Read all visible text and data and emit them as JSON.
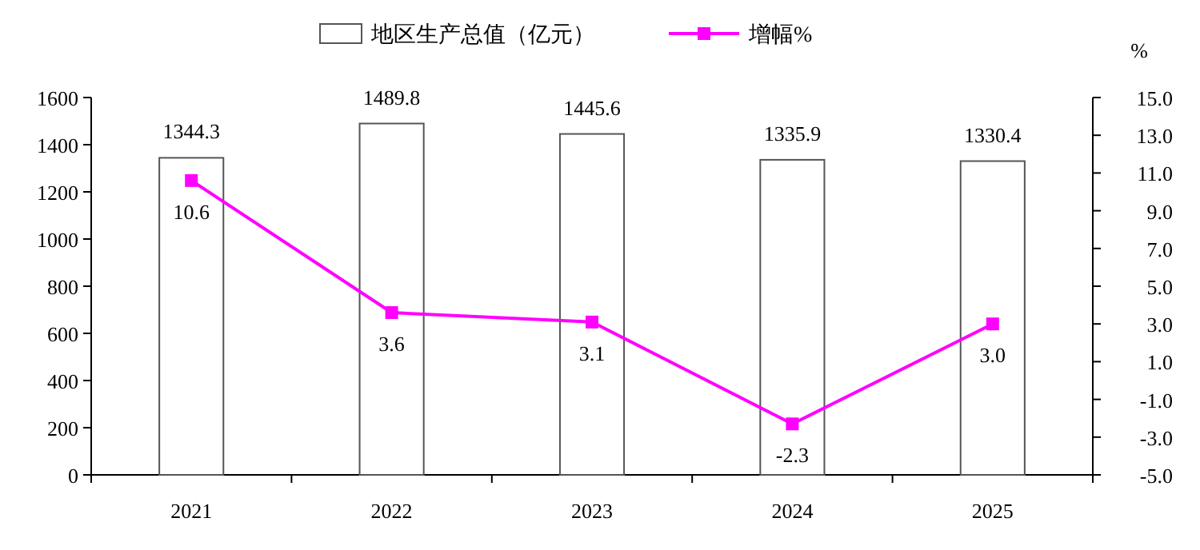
{
  "chart_data": {
    "type": "bar",
    "categories": [
      "2021",
      "2022",
      "2023",
      "2024",
      "2025"
    ],
    "series": [
      {
        "name": "地区生产总值（亿元）",
        "color": "#ffffff",
        "values": [
          1344.3,
          1489.8,
          1445.6,
          1335.9,
          1330.4
        ]
      },
      {
        "name": "增幅%",
        "type": "line",
        "axis": "y2",
        "marker": "square",
        "color": "#ff00ff",
        "values": [
          10.6,
          3.6,
          3.1,
          -2.3,
          3.0
        ],
        "value_labels": [
          "10.6",
          "3.6",
          "3.1",
          "-2.3",
          "3.0"
        ]
      }
    ],
    "ylim": [
      0,
      1600
    ],
    "yticks": [
      0,
      200,
      400,
      600,
      800,
      1000,
      1200,
      1400,
      1600
    ],
    "y2lim": [
      -5,
      15
    ],
    "y2ticks": [
      {
        "value": -5,
        "label": "-5.0"
      },
      {
        "value": -3,
        "label": "-3.0"
      },
      {
        "value": -1,
        "label": "-1.0"
      },
      {
        "value": 1,
        "label": "1.0"
      },
      {
        "value": 3,
        "label": "3.0"
      },
      {
        "value": 5,
        "label": "5.0"
      },
      {
        "value": 7,
        "label": "7.0"
      },
      {
        "value": 9,
        "label": "9.0"
      },
      {
        "value": 11,
        "label": "11.0"
      },
      {
        "value": 13,
        "label": "13.0"
      },
      {
        "value": 15,
        "label": "15.0"
      }
    ],
    "y2label": "%",
    "legend": "top",
    "data_labels": true
  }
}
